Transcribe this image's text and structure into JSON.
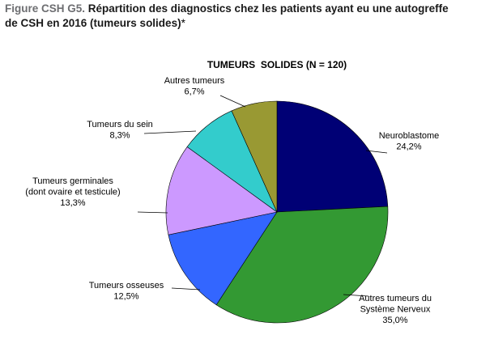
{
  "figure": {
    "prefix": "Figure CSH G5.",
    "title_line1": "Répartition des diagnostics chez les patients ayant eu une autogreffe",
    "title_line2": "de CSH en 2016 (tumeurs solides)",
    "footnote_mark": "*"
  },
  "chart_data": {
    "type": "pie",
    "title": "TUMEURS  SOLIDES (N = 120)",
    "categories": [
      "Neuroblastome",
      "Autres tumeurs du Système Nerveux",
      "Tumeurs osseuses",
      "Tumeurs germinales (dont ovaire et testicule)",
      "Tumeurs du sein",
      "Autres tumeurs"
    ],
    "values": [
      24.2,
      35.0,
      12.5,
      13.3,
      8.3,
      6.7
    ],
    "value_labels": [
      "24,2%",
      "35,0%",
      "12,5%",
      "13,3%",
      "8,3%",
      "6,7%"
    ],
    "label_lines": [
      [
        "Neuroblastome",
        "24,2%"
      ],
      [
        "Autres tumeurs du",
        "Système Nerveux",
        "35,0%"
      ],
      [
        "Tumeurs osseuses",
        "12,5%"
      ],
      [
        "Tumeurs germinales",
        "(dont ovaire et testicule)",
        "13,3%"
      ],
      [
        "Tumeurs du sein",
        "8,3%"
      ],
      [
        "Autres tumeurs",
        "6,7%"
      ]
    ],
    "colors": [
      "#000075",
      "#339933",
      "#3366ff",
      "#cc99ff",
      "#33cccc",
      "#999933"
    ],
    "start_angle_deg": 0,
    "direction": "clockwise",
    "legend": "none"
  }
}
